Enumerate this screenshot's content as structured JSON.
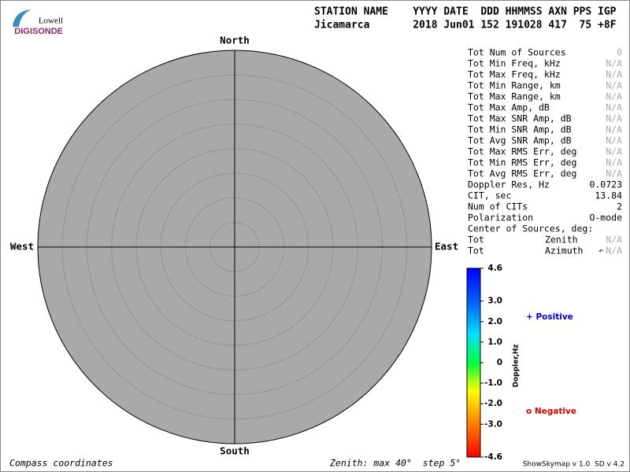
{
  "logo": {
    "top": "Lowell",
    "bottom": "DIGISONDE"
  },
  "header": {
    "columns": "STATION NAME    YYYY DATE  DDD HHMMSS AXN PPS IGP",
    "values": "Jicamarca       2018 Jun01 152 191028 417  75 +8F"
  },
  "compass": {
    "north": "North",
    "south": "South",
    "east": "East",
    "west": "West"
  },
  "stats": {
    "rows": [
      [
        "Tot Num of Sources",
        "0"
      ],
      [
        "Tot Min Freq, kHz",
        "N/A"
      ],
      [
        "Tot Max Freq, kHz",
        "N/A"
      ],
      [
        "Tot Min Range, km",
        "N/A"
      ],
      [
        "Tot Max Range, km",
        "N/A"
      ],
      [
        "Tot Max Amp, dB",
        "N/A"
      ],
      [
        "Tot Max SNR Amp, dB",
        "N/A"
      ],
      [
        "Tot Min SNR Amp, dB",
        "N/A"
      ],
      [
        "Tot Avg SNR Amp, dB",
        "N/A"
      ],
      [
        "Tot Max RMS Err, deg",
        "N/A"
      ],
      [
        "Tot Min RMS Err, deg",
        "N/A"
      ],
      [
        "Tot Avg RMS Err, deg",
        "N/A"
      ],
      [
        "Doppler Res, Hz",
        "0.0723"
      ],
      [
        "CIT, sec",
        "13.84"
      ],
      [
        "Num of CITs",
        "2"
      ],
      [
        "Polarization",
        "O-mode"
      ]
    ],
    "center_title": "Center of Sources, deg:",
    "center_rows": [
      [
        "Tot",
        "Zenith",
        "N/A"
      ],
      [
        "Tot",
        "Azimuth",
        "N/A"
      ]
    ]
  },
  "colorbar": {
    "label": "Doppler,Hz",
    "range": [
      -4.6,
      4.6
    ],
    "ticks": [
      4.6,
      {
        "value": 3,
        "label": "3.0"
      },
      {
        "value": 2,
        "label": "2.0"
      },
      {
        "value": 1,
        "label": "1.0"
      },
      0,
      {
        "value": -1,
        "label": "-1.0"
      },
      {
        "value": -2,
        "label": "-2.0"
      },
      {
        "value": -3,
        "label": "-3.0"
      },
      -4.6
    ]
  },
  "legend": {
    "positive": "+ Positive",
    "negative": "o Negative"
  },
  "footer": {
    "left": "Compass coordinates",
    "center": "Zenith: max 40°  step 5°",
    "right": "ShowSkymap v 1.0  SD v 4.2"
  }
}
